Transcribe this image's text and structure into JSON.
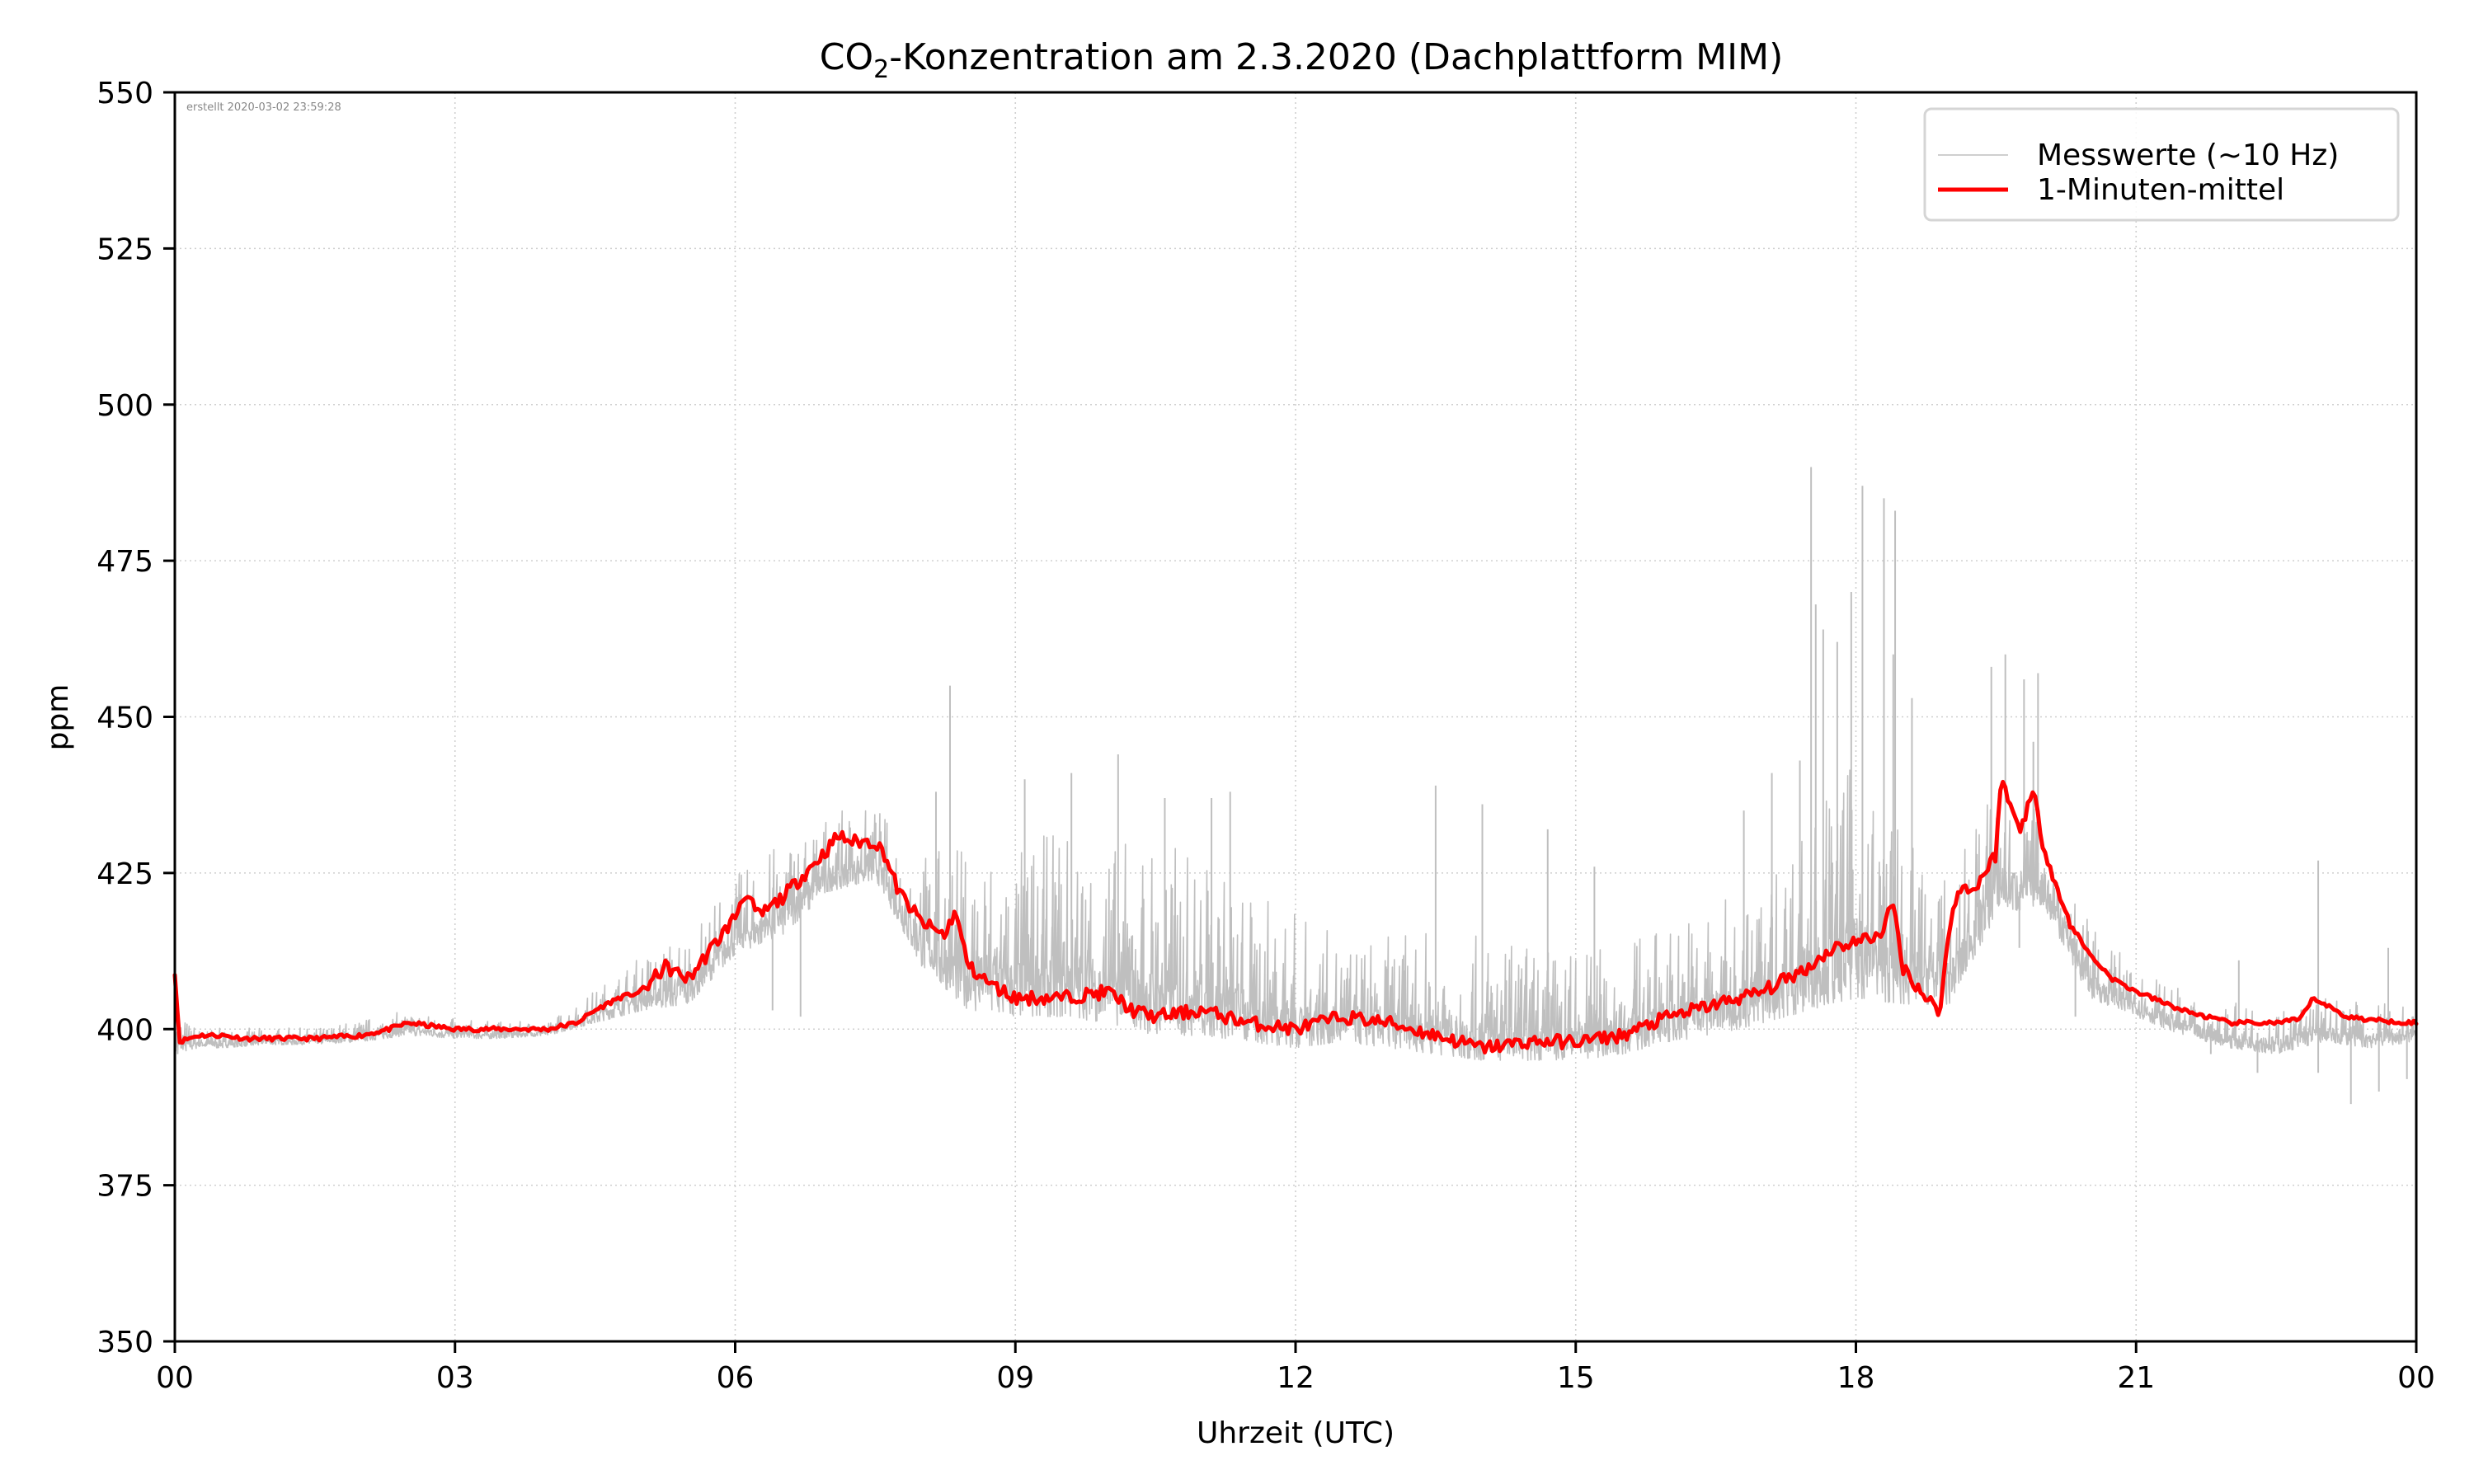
{
  "chart_data": {
    "type": "line",
    "title_prefix": "CO",
    "title_subscript": "2",
    "title_suffix": "-Konzentration am 2.3.2020 (Dachplattform MIM)",
    "title": "CO2-Konzentration am 2.3.2020 (Dachplattform MIM)",
    "xlabel": "Uhrzeit (UTC)",
    "ylabel": "ppm",
    "xlim": [
      0,
      24
    ],
    "ylim": [
      350,
      550
    ],
    "grid": true,
    "legend_position": "top-right",
    "annotation": "erstellt 2020-03-02 23:59:28",
    "x_ticks": [
      0,
      3,
      6,
      9,
      12,
      15,
      18,
      21,
      24
    ],
    "x_tick_labels": [
      "00",
      "03",
      "06",
      "09",
      "12",
      "15",
      "18",
      "21",
      "00"
    ],
    "y_ticks": [
      350,
      375,
      400,
      425,
      450,
      475,
      500,
      525,
      550
    ],
    "y_tick_labels": [
      "350",
      "375",
      "400",
      "425",
      "450",
      "475",
      "500",
      "525",
      "550"
    ],
    "series": [
      {
        "name": "Messwerte (~10 Hz)",
        "color": "#bfbfbf",
        "kind": "envelope",
        "x": [
          0.0,
          0.25,
          0.5,
          1.0,
          1.5,
          2.0,
          2.5,
          3.0,
          3.5,
          4.0,
          4.5,
          5.0,
          5.5,
          6.0,
          6.5,
          7.0,
          7.5,
          8.0,
          8.5,
          9.0,
          9.5,
          10.0,
          10.5,
          11.0,
          11.5,
          12.0,
          12.5,
          13.0,
          13.5,
          14.0,
          14.5,
          15.0,
          15.5,
          16.0,
          16.5,
          17.0,
          17.5,
          18.0,
          18.5,
          19.0,
          19.5,
          20.0,
          20.5,
          21.0,
          21.5,
          22.0,
          22.5,
          23.0,
          23.5,
          24.0
        ],
        "min": [
          396,
          397,
          397,
          397.5,
          397.5,
          398,
          399,
          398.5,
          398.5,
          399,
          401,
          403,
          404,
          412,
          415,
          422,
          424,
          410,
          403,
          402,
          402,
          401,
          399,
          399,
          398,
          397,
          398,
          397,
          396,
          395,
          395,
          395,
          396,
          398,
          399,
          401,
          403,
          405,
          404,
          404,
          418,
          420,
          405,
          402,
          399,
          397,
          396,
          398,
          397,
          398
        ],
        "max": [
          404,
          400.5,
          400.5,
          400.5,
          400.5,
          402,
          403.5,
          402,
          401.5,
          401.5,
          407,
          413,
          417,
          426,
          432,
          436,
          437,
          431,
          433,
          432,
          436,
          433,
          435,
          431,
          425,
          422,
          416,
          417,
          418,
          417,
          416,
          415,
          416,
          420,
          423,
          425,
          440,
          448,
          435,
          425,
          445,
          437,
          418,
          411,
          407,
          405,
          405,
          406,
          405,
          405
        ],
        "spikes": [
          {
            "x": 8.3,
            "y": 455
          },
          {
            "x": 8.15,
            "y": 438
          },
          {
            "x": 9.1,
            "y": 440
          },
          {
            "x": 9.6,
            "y": 441
          },
          {
            "x": 10.1,
            "y": 444
          },
          {
            "x": 10.6,
            "y": 437
          },
          {
            "x": 11.3,
            "y": 438
          },
          {
            "x": 11.1,
            "y": 437
          },
          {
            "x": 13.5,
            "y": 439
          },
          {
            "x": 14.0,
            "y": 436
          },
          {
            "x": 14.7,
            "y": 432
          },
          {
            "x": 15.2,
            "y": 426
          },
          {
            "x": 16.8,
            "y": 435
          },
          {
            "x": 17.1,
            "y": 441
          },
          {
            "x": 17.4,
            "y": 443
          },
          {
            "x": 17.52,
            "y": 490
          },
          {
            "x": 17.57,
            "y": 468
          },
          {
            "x": 17.65,
            "y": 464
          },
          {
            "x": 17.8,
            "y": 462
          },
          {
            "x": 17.95,
            "y": 470
          },
          {
            "x": 18.07,
            "y": 487
          },
          {
            "x": 18.3,
            "y": 485
          },
          {
            "x": 18.4,
            "y": 460
          },
          {
            "x": 18.42,
            "y": 483
          },
          {
            "x": 18.6,
            "y": 453
          },
          {
            "x": 19.45,
            "y": 458
          },
          {
            "x": 19.6,
            "y": 460
          },
          {
            "x": 19.8,
            "y": 456
          },
          {
            "x": 19.9,
            "y": 446
          },
          {
            "x": 19.95,
            "y": 457
          },
          {
            "x": 22.95,
            "y": 427
          },
          {
            "x": 23.7,
            "y": 413
          },
          {
            "x": 22.1,
            "y": 411
          }
        ],
        "dips": [
          {
            "x": 0.03,
            "y": 396
          },
          {
            "x": 6.4,
            "y": 403
          },
          {
            "x": 6.7,
            "y": 402
          },
          {
            "x": 19.75,
            "y": 413
          },
          {
            "x": 20.35,
            "y": 402
          },
          {
            "x": 21.8,
            "y": 396
          },
          {
            "x": 22.3,
            "y": 393
          },
          {
            "x": 22.95,
            "y": 393
          },
          {
            "x": 23.3,
            "y": 388
          },
          {
            "x": 23.6,
            "y": 390
          },
          {
            "x": 23.9,
            "y": 392
          }
        ]
      },
      {
        "name": "1-Minuten-mittel",
        "color": "#ff0000",
        "kind": "line",
        "x": [
          0.0,
          0.05,
          0.25,
          0.5,
          0.75,
          1.0,
          1.5,
          2.0,
          2.3,
          2.5,
          3.0,
          3.5,
          4.0,
          4.3,
          4.5,
          4.75,
          5.0,
          5.25,
          5.5,
          5.75,
          6.0,
          6.1,
          6.25,
          6.5,
          6.75,
          7.0,
          7.1,
          7.25,
          7.5,
          7.6,
          7.75,
          8.0,
          8.25,
          8.35,
          8.5,
          8.75,
          9.0,
          9.5,
          10.0,
          10.25,
          10.5,
          11.0,
          11.5,
          12.0,
          12.5,
          13.0,
          13.5,
          14.0,
          14.5,
          15.0,
          15.5,
          16.0,
          16.5,
          17.0,
          17.25,
          17.5,
          17.75,
          18.0,
          18.25,
          18.4,
          18.5,
          18.75,
          18.9,
          19.0,
          19.1,
          19.25,
          19.5,
          19.55,
          19.75,
          19.9,
          20.0,
          20.25,
          20.5,
          20.75,
          21.0,
          21.5,
          22.0,
          22.5,
          22.75,
          22.9,
          23.25,
          23.5,
          24.0
        ],
        "values": [
          409,
          398,
          399,
          399,
          398.5,
          398.5,
          398.5,
          399,
          400,
          401,
          400,
          400,
          400,
          401,
          403,
          405,
          406,
          410,
          408,
          413,
          418,
          422,
          418,
          421,
          425,
          429,
          431,
          430,
          430,
          428,
          422,
          417,
          415,
          419,
          410,
          407,
          405,
          405,
          406,
          403,
          402,
          403,
          401,
          400,
          402,
          401,
          399,
          397,
          398,
          398,
          399,
          402,
          404,
          406,
          408,
          410,
          413,
          414,
          415,
          420,
          410,
          405,
          403,
          416,
          423,
          422,
          428,
          440,
          432,
          438,
          430,
          418,
          412,
          408,
          406,
          403,
          401,
          401,
          401.5,
          405,
          402,
          401.5,
          401
        ]
      }
    ]
  }
}
